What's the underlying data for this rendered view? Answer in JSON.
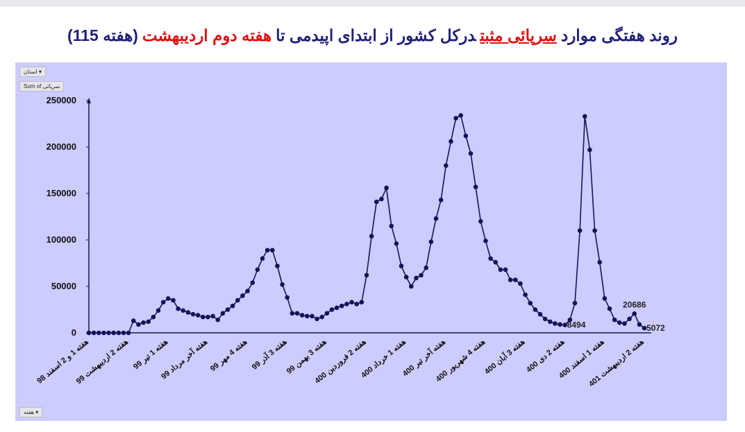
{
  "pivot_buttons": [
    "استان",
    "Sum of سرپائی",
    "هفته"
  ],
  "chart_data": {
    "type": "line",
    "title_segments": [
      {
        "text": "روند هفتگی موارد",
        "color": "#1f1f7a",
        "underline": false
      },
      {
        "text": "سرپائی مثبت",
        "color": "#e01010",
        "underline": true
      },
      {
        "text": "درکل کشور از ابتدای اپیدمی تا",
        "color": "#1f1f7a",
        "underline": false
      },
      {
        "text": "هفته دوم اردیبهشت",
        "color": "#e01010",
        "underline": false
      },
      {
        "text": "(هفته 115)",
        "color": "#1f1f7a",
        "underline": false
      }
    ],
    "categories": [
      "هفته 1 و 2 اسفند 98",
      null,
      null,
      null,
      null,
      null,
      null,
      null,
      "هفته 2 اردیبهشت 99",
      null,
      null,
      null,
      null,
      null,
      null,
      null,
      "هفته 1 تیر 99",
      null,
      null,
      null,
      null,
      null,
      null,
      null,
      "هفته آخر مرداد 99",
      null,
      null,
      null,
      null,
      null,
      null,
      null,
      "هفته 4 مهر 99",
      null,
      null,
      null,
      null,
      null,
      null,
      null,
      "هفته 3 آذر 99",
      null,
      null,
      null,
      null,
      null,
      null,
      null,
      "هفته 3 بهمن 99",
      null,
      null,
      null,
      null,
      null,
      null,
      null,
      "هفته 2 فروردین 400",
      null,
      null,
      null,
      null,
      null,
      null,
      null,
      "هفته 1 خرداد 400",
      null,
      null,
      null,
      null,
      null,
      null,
      null,
      "هفته آخر تیر 400",
      null,
      null,
      null,
      null,
      null,
      null,
      null,
      "هفته 4 شهریور 400",
      null,
      null,
      null,
      null,
      null,
      null,
      null,
      "هفته 3 آبان 400",
      null,
      null,
      null,
      null,
      null,
      null,
      null,
      "هفته 2 دی 400",
      null,
      null,
      null,
      null,
      null,
      null,
      null,
      "هفته 1 اسفند 400",
      null,
      null,
      null,
      null,
      null,
      null,
      null,
      "هفته 2 اردیبهشت 401"
    ],
    "values": [
      0,
      0,
      0,
      0,
      0,
      0,
      0,
      0,
      0,
      13000,
      9000,
      11000,
      12000,
      17000,
      24000,
      33000,
      37000,
      35000,
      26000,
      24000,
      22000,
      20000,
      19000,
      17000,
      17000,
      18000,
      14000,
      21000,
      25000,
      29000,
      35000,
      40000,
      45000,
      54000,
      68000,
      80000,
      89000,
      89000,
      72000,
      52000,
      38000,
      21000,
      21000,
      19000,
      18000,
      18000,
      15000,
      17000,
      21000,
      25000,
      27000,
      29000,
      31000,
      33000,
      31000,
      33000,
      62000,
      104000,
      141000,
      144000,
      156000,
      115000,
      96000,
      72000,
      60000,
      50000,
      59000,
      62000,
      70000,
      98000,
      123000,
      143000,
      180000,
      206000,
      231000,
      234000,
      212000,
      193000,
      157000,
      120000,
      99000,
      80000,
      76000,
      68000,
      68000,
      57000,
      57000,
      53000,
      41000,
      32000,
      25000,
      20000,
      15000,
      12000,
      10000,
      9000,
      8494,
      14000,
      32000,
      110000,
      233000,
      197000,
      110000,
      76000,
      37000,
      26000,
      14000,
      11000,
      10000,
      15000,
      20686,
      9000,
      5072
    ],
    "value_labels": [
      null,
      null,
      null,
      null,
      null,
      null,
      null,
      null,
      null,
      null,
      null,
      null,
      null,
      null,
      null,
      null,
      null,
      null,
      null,
      null,
      null,
      null,
      null,
      null,
      null,
      null,
      null,
      null,
      null,
      null,
      null,
      null,
      null,
      null,
      null,
      null,
      null,
      null,
      null,
      null,
      null,
      null,
      null,
      null,
      null,
      null,
      null,
      null,
      null,
      null,
      null,
      null,
      null,
      null,
      null,
      null,
      null,
      null,
      null,
      null,
      null,
      null,
      null,
      null,
      null,
      null,
      null,
      null,
      null,
      null,
      null,
      null,
      null,
      null,
      null,
      null,
      null,
      null,
      null,
      null,
      null,
      null,
      null,
      null,
      null,
      null,
      null,
      null,
      null,
      null,
      null,
      null,
      null,
      null,
      null,
      null,
      "8494",
      null,
      null,
      null,
      null,
      null,
      null,
      null,
      null,
      null,
      null,
      null,
      null,
      null,
      "20686",
      null,
      "5072"
    ],
    "color": "#14145a",
    "background": "#ccccff",
    "ylim": [
      0,
      250000
    ],
    "yticks": [
      0,
      50000,
      100000,
      150000,
      200000,
      250000
    ],
    "grid": false
  }
}
